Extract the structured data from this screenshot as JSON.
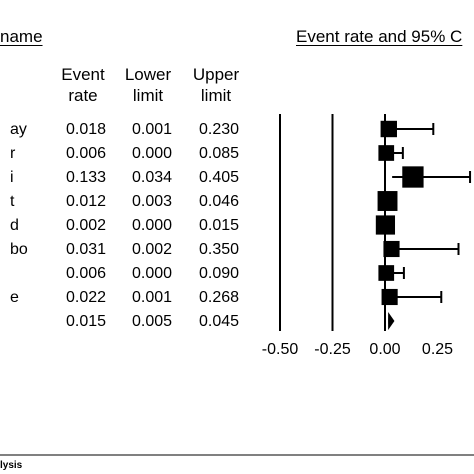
{
  "header": {
    "study_name": "name",
    "effect_title": "Event rate and 95% C"
  },
  "columns": {
    "event_rate": [
      "Event",
      "rate"
    ],
    "lower_limit": [
      "Lower",
      "limit"
    ],
    "upper_limit": [
      "Upper",
      "limit"
    ]
  },
  "rows": [
    {
      "study": "ay",
      "event_rate": "0.018",
      "lower_limit": "0.001",
      "upper_limit": "0.230"
    },
    {
      "study": "r",
      "event_rate": "0.006",
      "lower_limit": "0.000",
      "upper_limit": "0.085"
    },
    {
      "study": "i",
      "event_rate": "0.133",
      "lower_limit": "0.034",
      "upper_limit": "0.405"
    },
    {
      "study": "t",
      "event_rate": "0.012",
      "lower_limit": "0.003",
      "upper_limit": "0.046"
    },
    {
      "study": "d",
      "event_rate": "0.002",
      "lower_limit": "0.000",
      "upper_limit": "0.015"
    },
    {
      "study": "bo",
      "event_rate": "0.031",
      "lower_limit": "0.002",
      "upper_limit": "0.350"
    },
    {
      "study": "",
      "event_rate": "0.006",
      "lower_limit": "0.000",
      "upper_limit": "0.090"
    },
    {
      "study": "e",
      "event_rate": "0.022",
      "lower_limit": "0.001",
      "upper_limit": "0.268"
    },
    {
      "study": "",
      "event_rate": "0.015",
      "lower_limit": "0.005",
      "upper_limit": "0.045"
    }
  ],
  "footer": "lysis",
  "chart_data": {
    "type": "scatter",
    "title": "Event rate and 95% C",
    "xlabel": "",
    "ylabel": "",
    "x_ticks": [
      "-0.50",
      "-0.25",
      "0.00",
      "0.25"
    ],
    "xlim": [
      -0.5,
      0.25
    ],
    "reference_lines": [
      -0.5,
      -0.25,
      0.0
    ],
    "studies": [
      {
        "estimate": 0.018,
        "lower": 0.001,
        "upper": 0.23,
        "weight": 0.6
      },
      {
        "estimate": 0.006,
        "lower": 0.0,
        "upper": 0.085,
        "weight": 0.55
      },
      {
        "estimate": 0.133,
        "lower": 0.034,
        "upper": 0.405,
        "weight": 0.95
      },
      {
        "estimate": 0.012,
        "lower": 0.003,
        "upper": 0.046,
        "weight": 0.85
      },
      {
        "estimate": 0.002,
        "lower": 0.0,
        "upper": 0.015,
        "weight": 0.8
      },
      {
        "estimate": 0.031,
        "lower": 0.002,
        "upper": 0.35,
        "weight": 0.58
      },
      {
        "estimate": 0.006,
        "lower": 0.0,
        "upper": 0.09,
        "weight": 0.55
      },
      {
        "estimate": 0.022,
        "lower": 0.001,
        "upper": 0.268,
        "weight": 0.58
      }
    ],
    "summary": {
      "estimate": 0.015,
      "lower": 0.005,
      "upper": 0.045
    }
  }
}
